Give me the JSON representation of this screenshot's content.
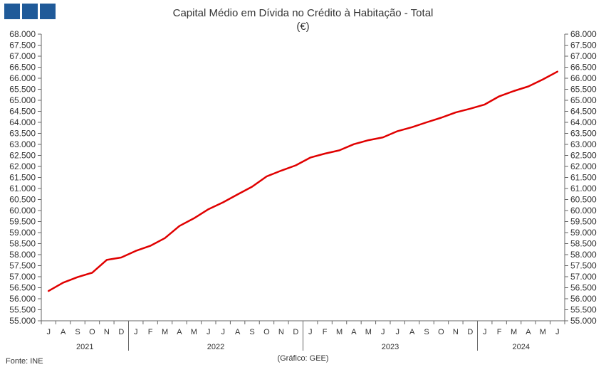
{
  "chart_data": {
    "type": "line",
    "title": "Capital Médio em Dívida no Crédito à Habitação - Total",
    "subtitle": "(€)",
    "source": "Fonte: INE",
    "credit": "(Gráfico: GEE)",
    "ylim": [
      55000,
      68000
    ],
    "yticks": [
      "68.000",
      "67.500",
      "67.000",
      "66.500",
      "66.000",
      "65.500",
      "65.000",
      "64.500",
      "64.000",
      "63.500",
      "63.000",
      "62.500",
      "62.000",
      "61.500",
      "61.000",
      "60.500",
      "60.000",
      "59.500",
      "59.000",
      "58.500",
      "58.000",
      "57.500",
      "57.000",
      "56.500",
      "56.000",
      "55.500",
      "55.000"
    ],
    "ytick_values": [
      68000,
      67500,
      67000,
      66500,
      66000,
      65500,
      65000,
      64500,
      64000,
      63500,
      63000,
      62500,
      62000,
      61500,
      61000,
      60500,
      60000,
      59500,
      59000,
      58500,
      58000,
      57500,
      57000,
      56500,
      56000,
      55500,
      55000
    ],
    "month_labels": [
      "J",
      "A",
      "S",
      "O",
      "N",
      "D",
      "J",
      "F",
      "M",
      "A",
      "M",
      "J",
      "J",
      "A",
      "S",
      "O",
      "N",
      "D",
      "J",
      "F",
      "M",
      "A",
      "M",
      "J",
      "J",
      "A",
      "S",
      "O",
      "N",
      "D",
      "J",
      "F",
      "M",
      "A",
      "M",
      "J"
    ],
    "years": [
      {
        "label": "2021",
        "start": 0,
        "count": 6
      },
      {
        "label": "2022",
        "start": 6,
        "count": 12
      },
      {
        "label": "2023",
        "start": 18,
        "count": 12
      },
      {
        "label": "2024",
        "start": 30,
        "count": 6
      }
    ],
    "series": [
      {
        "color": "#e00000",
        "values": [
          56350,
          56730,
          56980,
          57180,
          57760,
          57870,
          58170,
          58400,
          58750,
          59300,
          59650,
          60060,
          60370,
          60730,
          61080,
          61550,
          61810,
          62050,
          62400,
          62580,
          62730,
          63010,
          63190,
          63320,
          63600,
          63780,
          64000,
          64210,
          64450,
          64620,
          64810,
          65180,
          65420,
          65630,
          65950,
          66300
        ]
      }
    ]
  }
}
